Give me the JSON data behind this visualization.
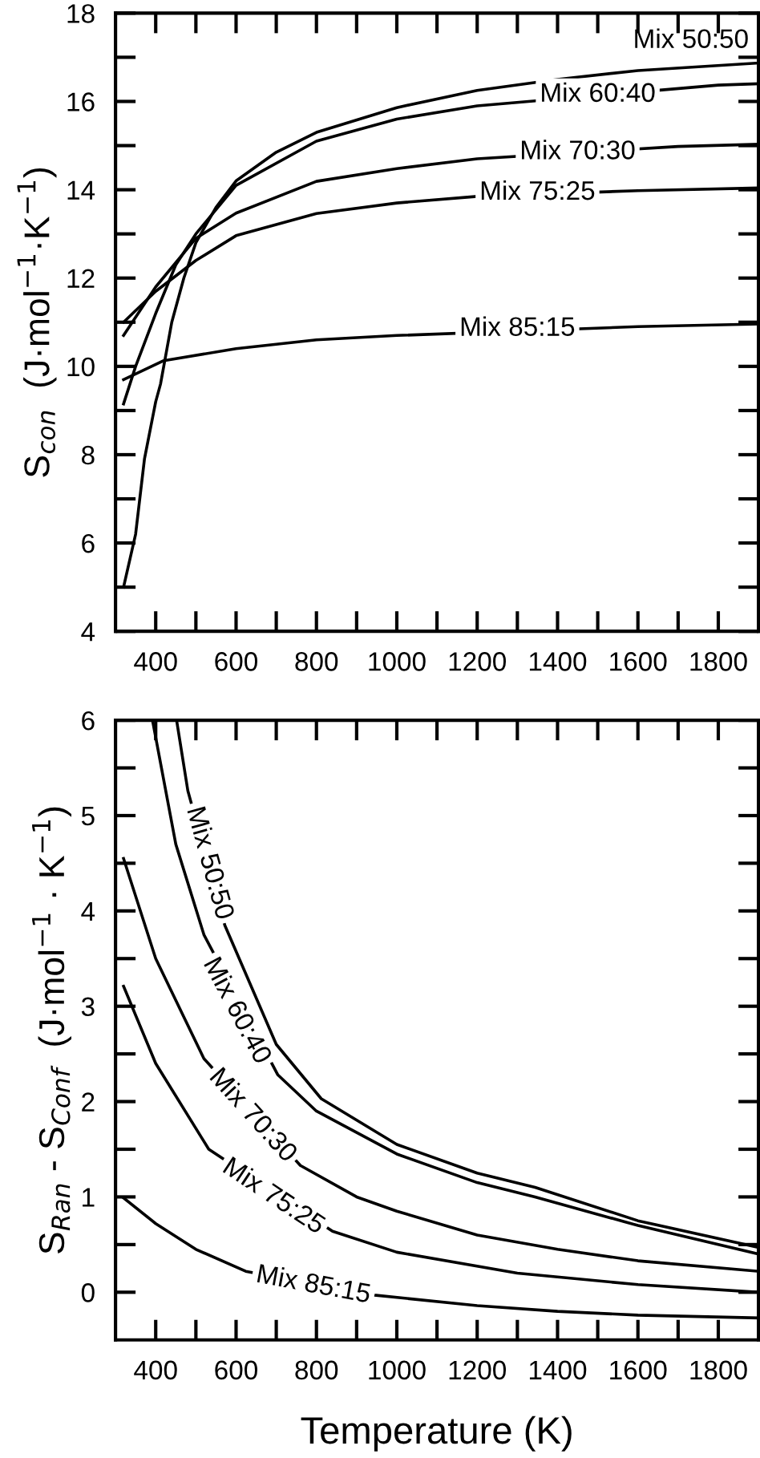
{
  "chart_data": [
    {
      "type": "line",
      "ylabel": "S$_{con}$  (J·mol$^{−1}$·K$^{−1}$)",
      "xlim": [
        300,
        1900
      ],
      "ylim": [
        4,
        18
      ],
      "xticks": [
        400,
        {
          "value": 500,
          "label": null
        },
        600,
        {
          "value": 700,
          "label": null
        },
        800,
        {
          "value": 900,
          "label": null
        },
        1000,
        {
          "value": 1100,
          "label": null
        },
        1200,
        {
          "value": 1300,
          "label": null
        },
        1400,
        {
          "value": 1500,
          "label": null
        },
        1600,
        {
          "value": 1700,
          "label": null
        },
        1800
      ],
      "yticks": [
        4,
        {
          "value": 5,
          "label": null
        },
        6,
        {
          "value": 7,
          "label": null
        },
        8,
        {
          "value": 9,
          "label": null
        },
        10,
        {
          "value": 11,
          "label": null
        },
        12,
        {
          "value": 13,
          "label": null
        },
        14,
        {
          "value": 15,
          "label": null
        },
        16,
        {
          "value": 17,
          "label": null
        },
        18
      ],
      "grid": false,
      "legend": false,
      "series": [
        {
          "color": "#000000",
          "x": [
            320,
            350,
            372,
            400,
            412,
            440,
            470,
            500,
            550,
            600,
            700,
            800,
            1000,
            1200,
            1400,
            1600,
            1900
          ],
          "values": [
            5.0,
            6.2,
            7.9,
            9.2,
            9.6,
            11.0,
            12.0,
            12.8,
            13.6,
            14.2,
            14.85,
            15.3,
            15.86,
            16.25,
            16.5,
            16.7,
            16.87
          ]
        },
        {
          "color": "#000000",
          "x": [
            320,
            350,
            400,
            450,
            500,
            600,
            800,
            1000,
            1200,
            1800,
            1900
          ],
          "values": [
            9.15,
            10.0,
            11.2,
            12.3,
            13.0,
            14.1,
            15.1,
            15.6,
            15.9,
            16.37,
            16.4
          ]
        },
        {
          "color": "#000000",
          "x": [
            320,
            400,
            500,
            600,
            800,
            1000,
            1200,
            1700,
            1900
          ],
          "values": [
            10.7,
            11.8,
            12.9,
            13.47,
            14.19,
            14.48,
            14.7,
            14.98,
            15.03
          ]
        },
        {
          "color": "#000000",
          "x": [
            320,
            400,
            500,
            600,
            800,
            1000,
            1200,
            1600,
            1900
          ],
          "values": [
            11.0,
            11.7,
            12.4,
            12.96,
            13.46,
            13.7,
            13.85,
            13.98,
            14.04
          ]
        },
        {
          "color": "#000000",
          "x": [
            320,
            420,
            600,
            800,
            1000,
            1600,
            1900
          ],
          "values": [
            9.7,
            10.13,
            10.4,
            10.6,
            10.7,
            10.9,
            10.96
          ]
        }
      ],
      "annotations": [
        "Mix 50:50",
        {
          "text": "Mix 60:40",
          "x": 1500,
          "y": 16.15
        },
        {
          "text": "Mix 70:30",
          "x": 1450,
          "y": 14.85
        },
        {
          "text": "Mix 75:25",
          "x": 1350,
          "y": 13.93
        },
        {
          "text": "Mix 85:15",
          "x": 1300,
          "y": 10.85
        }
      ]
    },
    {
      "type": "line",
      "xlabel": "Temperature (K)",
      "ylabel": "S$_{Ran}$ - S$_{Conf}$  (J·mol$^{−1}$ · K$^{−1}$)",
      "xlim": [
        300,
        1900
      ],
      "ylim": [
        -0.5,
        6
      ],
      "xticks": [
        400,
        {
          "value": 500,
          "label": null
        },
        600,
        {
          "value": 700,
          "label": null
        },
        800,
        {
          "value": 900,
          "label": null
        },
        1000,
        {
          "value": 1100,
          "label": null
        },
        1200,
        {
          "value": 1300,
          "label": null
        },
        1400,
        {
          "value": 1500,
          "label": null
        },
        1600,
        {
          "value": 1700,
          "label": null
        },
        1800
      ],
      "yticks": [
        0,
        {
          "value": 0.5,
          "label": null
        },
        1,
        {
          "value": 1.5,
          "label": null
        },
        2,
        {
          "value": 2.5,
          "label": null
        },
        3,
        {
          "value": 3.5,
          "label": null
        },
        4,
        {
          "value": 4.5,
          "label": null
        },
        5,
        {
          "value": 5.5,
          "label": null
        },
        6
      ],
      "grid": false,
      "legend": false,
      "series": [
        {
          "color": "#000000",
          "x": [
            452,
            480,
            572,
            700,
            812,
            1000,
            1200,
            1344,
            1600,
            1900
          ],
          "values": [
            6.0,
            5.26,
            3.85,
            2.6,
            2.03,
            1.55,
            1.25,
            1.1,
            0.75,
            0.47
          ]
        },
        {
          "color": "#000000",
          "x": [
            392,
            450,
            520,
            704,
            800,
            1000,
            1200,
            1344,
            1600,
            1900
          ],
          "values": [
            6.0,
            4.7,
            3.75,
            2.28,
            1.9,
            1.45,
            1.15,
            1.0,
            0.7,
            0.4
          ]
        },
        {
          "color": "#000000",
          "x": [
            320,
            400,
            520,
            760,
            900,
            1000,
            1200,
            1400,
            1600,
            1900
          ],
          "values": [
            4.55,
            3.5,
            2.45,
            1.33,
            1.0,
            0.85,
            0.6,
            0.45,
            0.33,
            0.22
          ]
        },
        {
          "color": "#000000",
          "x": [
            320,
            400,
            532,
            840,
            1000,
            1300,
            1600,
            1900
          ],
          "values": [
            3.21,
            2.4,
            1.5,
            0.64,
            0.42,
            0.2,
            0.08,
            0.0
          ]
        },
        {
          "color": "#000000",
          "x": [
            320,
            400,
            500,
            624,
            944,
            1200,
            1400,
            1600,
            1900
          ],
          "values": [
            0.99,
            0.72,
            0.45,
            0.22,
            -0.03,
            -0.14,
            -0.2,
            -0.24,
            -0.27
          ]
        }
      ],
      "annotations": [
        {
          "text": "Mix 50:50",
          "x": 532,
          "y": 4.5
        },
        {
          "text": "Mix 60:40",
          "x": 600,
          "y": 2.95
        },
        {
          "text": "Mix 70:30",
          "x": 640,
          "y": 1.85
        },
        {
          "text": "Mix 75:25",
          "x": 692,
          "y": 1.0
        },
        {
          "text": "Mix 85:15",
          "x": 792,
          "y": 0.07
        }
      ]
    }
  ]
}
